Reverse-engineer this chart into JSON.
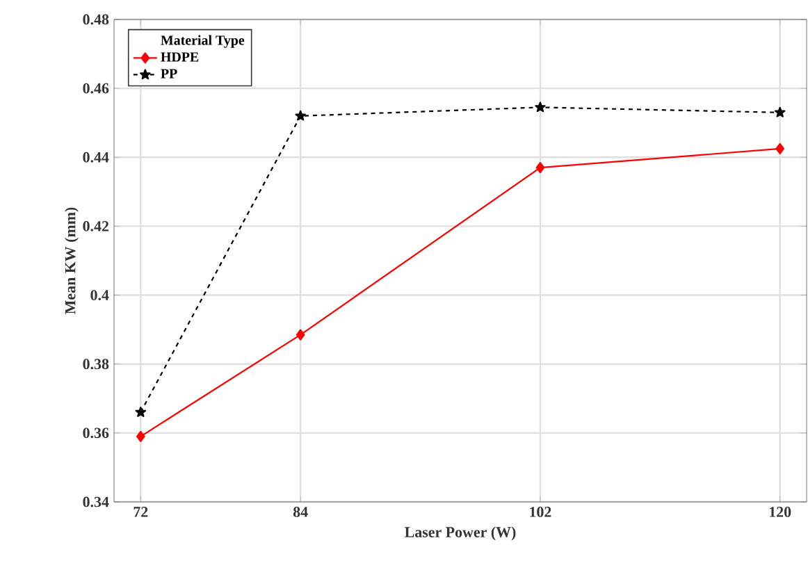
{
  "chart_data": {
    "type": "line",
    "xlabel": "Laser Power (W)",
    "ylabel": "Mean KW (mm)",
    "legend_title": "Material Type",
    "x": [
      72,
      84,
      102,
      120
    ],
    "series": [
      {
        "name": "HDPE",
        "color": "#ff0000",
        "values": [
          0.359,
          0.3885,
          0.437,
          0.4425
        ],
        "marker": "diamond",
        "line_style": "solid"
      },
      {
        "name": "PP",
        "color": "#000000",
        "values": [
          0.366,
          0.452,
          0.4545,
          0.453
        ],
        "marker": "star",
        "line_style": "dashed"
      }
    ],
    "xlim": [
      70,
      122
    ],
    "ylim": [
      0.34,
      0.48
    ],
    "xticks": [
      72,
      84,
      102,
      120
    ],
    "yticks": [
      0.34,
      0.36,
      0.38,
      0.4,
      0.42,
      0.44,
      0.46,
      0.48
    ],
    "grid": true,
    "legend": "top left"
  }
}
